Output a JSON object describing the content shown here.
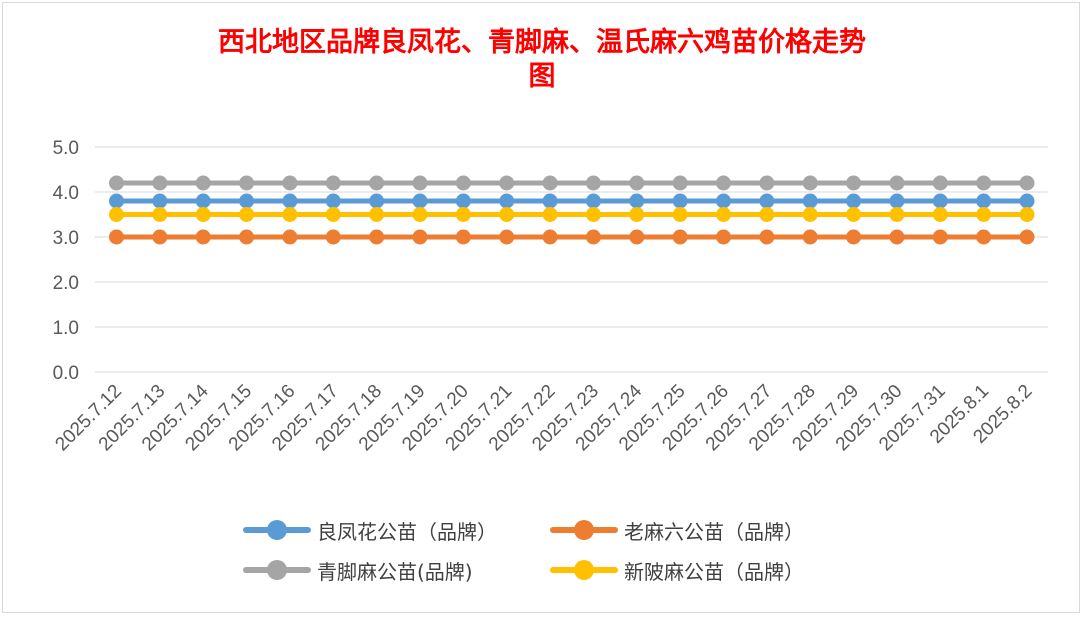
{
  "chart_data": {
    "type": "line",
    "title_line1": "西北地区品牌良凤花、青脚麻、温氏麻六鸡苗价格走势",
    "title_line2": "图",
    "x": [
      "2025.7.12",
      "2025.7.13",
      "2025.7.14",
      "2025.7.15",
      "2025.7.16",
      "2025.7.17",
      "2025.7.18",
      "2025.7.19",
      "2025.7.20",
      "2025.7.21",
      "2025.7.22",
      "2025.7.23",
      "2025.7.24",
      "2025.7.25",
      "2025.7.26",
      "2025.7.27",
      "2025.7.28",
      "2025.7.29",
      "2025.7.30",
      "2025.7.31",
      "2025.8.1",
      "2025.8.2"
    ],
    "y_ticks": [
      "5.0",
      "4.0",
      "3.0",
      "2.0",
      "1.0",
      "0.0"
    ],
    "ylim": [
      0,
      5
    ],
    "grid": true,
    "legend_position": "bottom",
    "series": [
      {
        "name": "良凤花公苗（品牌）",
        "color": "#5b9bd5",
        "values": [
          3.8,
          3.8,
          3.8,
          3.8,
          3.8,
          3.8,
          3.8,
          3.8,
          3.8,
          3.8,
          3.8,
          3.8,
          3.8,
          3.8,
          3.8,
          3.8,
          3.8,
          3.8,
          3.8,
          3.8,
          3.8,
          3.8
        ]
      },
      {
        "name": "老麻六公苗（品牌）",
        "color": "#ed7d31",
        "values": [
          3.0,
          3.0,
          3.0,
          3.0,
          3.0,
          3.0,
          3.0,
          3.0,
          3.0,
          3.0,
          3.0,
          3.0,
          3.0,
          3.0,
          3.0,
          3.0,
          3.0,
          3.0,
          3.0,
          3.0,
          3.0,
          3.0
        ]
      },
      {
        "name": "青脚麻公苗(品牌)",
        "color": "#a5a5a5",
        "values": [
          4.2,
          4.2,
          4.2,
          4.2,
          4.2,
          4.2,
          4.2,
          4.2,
          4.2,
          4.2,
          4.2,
          4.2,
          4.2,
          4.2,
          4.2,
          4.2,
          4.2,
          4.2,
          4.2,
          4.2,
          4.2,
          4.2
        ]
      },
      {
        "name": "新陂麻公苗（品牌）",
        "color": "#ffc000",
        "values": [
          3.5,
          3.5,
          3.5,
          3.5,
          3.5,
          3.5,
          3.5,
          3.5,
          3.5,
          3.5,
          3.5,
          3.5,
          3.5,
          3.5,
          3.5,
          3.5,
          3.5,
          3.5,
          3.5,
          3.5,
          3.5,
          3.5
        ]
      }
    ]
  }
}
